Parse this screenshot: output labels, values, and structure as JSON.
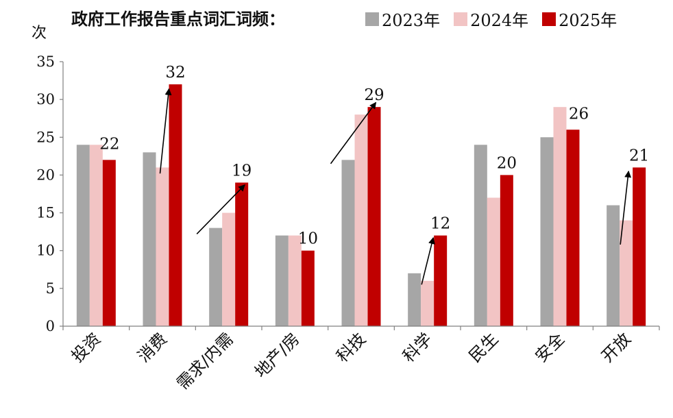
{
  "title": "政府工作报告重点词汇词频：",
  "ylabel": "次",
  "colors": {
    "2023": "#a6a6a6",
    "2024": "#f2c4c4",
    "2025": "#c00000"
  },
  "chart_data": {
    "type": "bar",
    "title": "政府工作报告重点词汇词频：",
    "xlabel": "",
    "ylabel": "次",
    "ylim": [
      0,
      35
    ],
    "yticks": [
      0,
      5,
      10,
      15,
      20,
      25,
      30,
      35
    ],
    "categories": [
      "投资",
      "消费",
      "需求/内需",
      "地产/房",
      "科技",
      "科学",
      "民生",
      "安全",
      "开放"
    ],
    "series": [
      {
        "name": "2023年",
        "values": [
          24,
          23,
          13,
          12,
          22,
          7,
          24,
          25,
          16
        ]
      },
      {
        "name": "2024年",
        "values": [
          24,
          21,
          15,
          12,
          28,
          6,
          17,
          29,
          14
        ]
      },
      {
        "name": "2025年",
        "values": [
          22,
          32,
          19,
          10,
          29,
          12,
          20,
          26,
          21
        ]
      }
    ],
    "data_labels_series": "2025年",
    "arrows": [
      "消费",
      "需求/内需",
      "科技",
      "科学",
      "开放"
    ],
    "legend_position": "top",
    "grid": false
  }
}
